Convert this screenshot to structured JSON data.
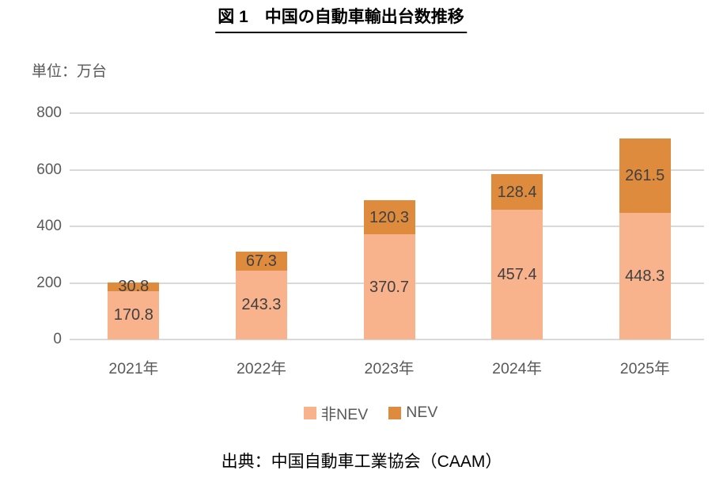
{
  "title": "図 1　中国の自動車輸出台数推移",
  "unit_label": "単位：万台",
  "source": "出典：中国自動車工業協会（CAAM）",
  "colors": {
    "non_nev": "#F8B28C",
    "nev": "#DF8B3D",
    "gridline": "#D9D9D9",
    "axis_text": "#595959",
    "data_label_text": "#404040",
    "title_text": "#000000"
  },
  "chart_data": {
    "type": "bar",
    "stacked": true,
    "title": "図 1　中国の自動車輸出台数推移",
    "ylabel": "単位：万台",
    "categories": [
      "2021年",
      "2022年",
      "2023年",
      "2024年",
      "2025年"
    ],
    "series": [
      {
        "name": "非NEV",
        "color_key": "non_nev",
        "values": [
          170.8,
          243.3,
          370.7,
          457.4,
          448.3
        ]
      },
      {
        "name": "NEV",
        "color_key": "nev",
        "values": [
          30.8,
          67.3,
          120.3,
          128.4,
          261.5
        ]
      }
    ],
    "totals": [
      201.6,
      310.6,
      491.0,
      585.8,
      709.8
    ],
    "yticks": [
      0,
      200,
      400,
      600,
      800
    ],
    "ylim": [
      0,
      800
    ],
    "grid": true,
    "legend_position": "bottom",
    "data_labels": "inside-center"
  }
}
